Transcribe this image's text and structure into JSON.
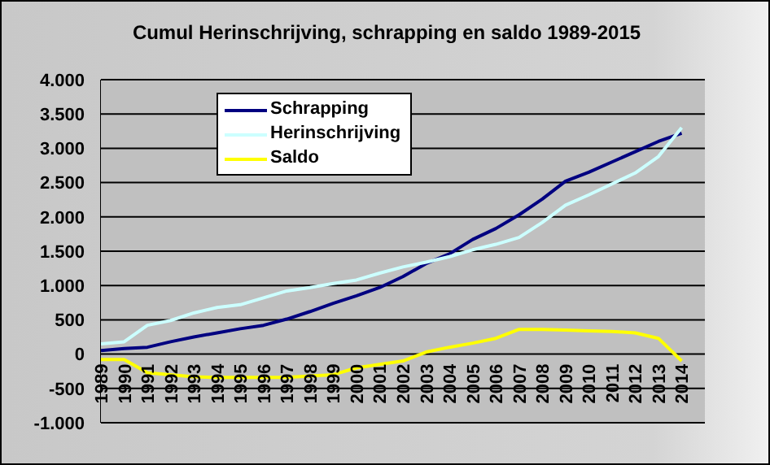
{
  "chart_data": {
    "type": "line",
    "title": "Cumul Herinschrijving, schrapping en saldo 1989-2015",
    "x": [
      1989,
      1990,
      1991,
      1992,
      1993,
      1994,
      1995,
      1996,
      1997,
      1998,
      1999,
      2000,
      2001,
      2002,
      2003,
      2004,
      2005,
      2006,
      2007,
      2008,
      2009,
      2010,
      2011,
      2012,
      2013,
      2014
    ],
    "series": [
      {
        "name": "Schrapping",
        "color": "#000080",
        "values": [
          50,
          80,
          100,
          180,
          250,
          310,
          370,
          420,
          510,
          620,
          740,
          850,
          970,
          1130,
          1320,
          1460,
          1670,
          1830,
          2030,
          2260,
          2520,
          2650,
          2800,
          2950,
          3100,
          3220
        ]
      },
      {
        "name": "Herinschrijving",
        "color": "#ccffff",
        "values": [
          150,
          180,
          420,
          490,
          600,
          680,
          720,
          820,
          920,
          970,
          1030,
          1080,
          1180,
          1270,
          1340,
          1420,
          1520,
          1600,
          1700,
          1920,
          2170,
          2320,
          2480,
          2640,
          2880,
          3300
        ]
      },
      {
        "name": "Saldo",
        "color": "#ffff00",
        "values": [
          -80,
          -80,
          -270,
          -300,
          -330,
          -340,
          -340,
          -340,
          -340,
          -320,
          -300,
          -200,
          -150,
          -100,
          30,
          100,
          160,
          230,
          360,
          360,
          350,
          340,
          330,
          310,
          230,
          -100
        ]
      }
    ],
    "xlim": [
      1989,
      2015
    ],
    "xticks": [
      1989,
      1990,
      1991,
      1992,
      1993,
      1994,
      1995,
      1996,
      1997,
      1998,
      1999,
      2000,
      2001,
      2002,
      2003,
      2004,
      2005,
      2006,
      2007,
      2008,
      2009,
      2010,
      2011,
      2012,
      2013,
      2014
    ],
    "ylim": [
      -1000,
      4000
    ],
    "yticks": [
      {
        "value": -1000,
        "label": "-1.000"
      },
      {
        "value": -500,
        "label": "-500"
      },
      {
        "value": 0,
        "label": "0"
      },
      {
        "value": 500,
        "label": "500"
      },
      {
        "value": 1000,
        "label": "1.000"
      },
      {
        "value": 1500,
        "label": "1.500"
      },
      {
        "value": 2000,
        "label": "2.000"
      },
      {
        "value": 2500,
        "label": "2.500"
      },
      {
        "value": 3000,
        "label": "3.000"
      },
      {
        "value": 3500,
        "label": "3.500"
      },
      {
        "value": 4000,
        "label": "4.000"
      }
    ],
    "grid": "y",
    "legend": "top left",
    "marker": "none",
    "line_style": "solid"
  }
}
